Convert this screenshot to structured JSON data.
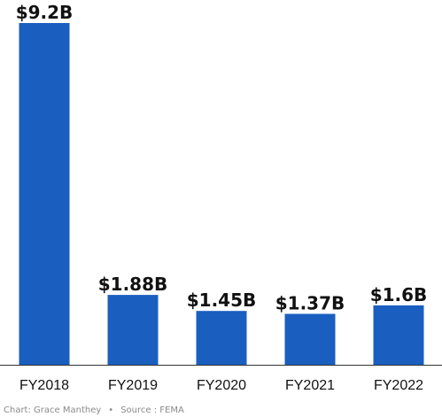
{
  "chart_data": {
    "type": "bar",
    "categories": [
      "FY2018",
      "FY2019",
      "FY2020",
      "FY2021",
      "FY2022"
    ],
    "values": [
      9.2,
      1.88,
      1.45,
      1.37,
      1.6
    ],
    "data_labels": [
      "$9.2B",
      "$1.88B",
      "$1.45B",
      "$1.37B",
      "$1.6B"
    ],
    "unit": "billion USD",
    "ylim": [
      0,
      9.2
    ],
    "grid": false,
    "bar_color": "#1a5fbf",
    "axis_color": "#333333"
  },
  "credit": {
    "chart_by": "Chart: Grace Manthey",
    "separator": "•",
    "source": "Source : FEMA"
  }
}
